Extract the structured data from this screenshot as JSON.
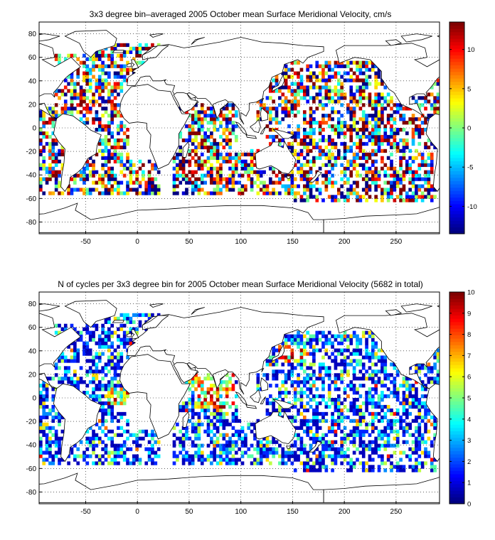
{
  "chart_data": [
    {
      "type": "heatmap",
      "title": "3x3 degree bin–averaged 2005 October mean Surface Meridional Velocity, cm/s",
      "xlim": [
        -95,
        292
      ],
      "ylim": [
        -90,
        90
      ],
      "xticks": [
        -50,
        0,
        50,
        100,
        150,
        200,
        250
      ],
      "yticks": [
        -80,
        -60,
        -40,
        -20,
        0,
        20,
        40,
        60,
        80
      ],
      "grid": true,
      "bin_size_deg": 3,
      "colormap": "jet",
      "colorbar": {
        "range": [
          -13.5,
          13.5
        ],
        "ticks": [
          -10,
          -5,
          0,
          5,
          10
        ],
        "placement": "right"
      },
      "value_distribution": "noisy, values span full range in nearly every ocean bin",
      "coverage_regions": [
        {
          "lon": [
            -95,
            -68
          ],
          "lat": [
            -58,
            18
          ]
        },
        {
          "lon": [
            -80,
            -8
          ],
          "lat": [
            -58,
            62
          ]
        },
        {
          "lon": [
            -45,
            22
          ],
          "lat": [
            45,
            72
          ]
        },
        {
          "lon": [
            -8,
            22
          ],
          "lat": [
            -58,
            -28
          ]
        },
        {
          "lon": [
            35,
            98
          ],
          "lat": [
            -58,
            22
          ]
        },
        {
          "lon": [
            95,
            140
          ],
          "lat": [
            -58,
            -18
          ]
        },
        {
          "lon": [
            115,
            132
          ],
          "lat": [
            5,
            35
          ]
        },
        {
          "lon": [
            125,
            250
          ],
          "lat": [
            -58,
            58
          ]
        },
        {
          "lon": [
            150,
            290
          ],
          "lat": [
            -62,
            5
          ]
        },
        {
          "lon": [
            228,
            292
          ],
          "lat": [
            5,
            30
          ]
        },
        {
          "lon": [
            272,
            292
          ],
          "lat": [
            25,
            48
          ]
        }
      ]
    },
    {
      "type": "heatmap",
      "title": "N of cycles per 3x3 degree bin for 2005 October mean Surface Meridional Velocity (5682 in total)",
      "xlim": [
        -95,
        292
      ],
      "ylim": [
        -90,
        90
      ],
      "xticks": [
        -50,
        0,
        50,
        100,
        150,
        200,
        250
      ],
      "yticks": [
        -80,
        -60,
        -40,
        -20,
        0,
        20,
        40,
        60,
        80
      ],
      "grid": true,
      "bin_size_deg": 3,
      "colormap": "jet",
      "total_cycles": 5682,
      "colorbar": {
        "range": [
          0,
          10
        ],
        "ticks": [
          0,
          1,
          2,
          3,
          4,
          5,
          6,
          7,
          8,
          9,
          10
        ],
        "placement": "right"
      },
      "value_distribution": "mostly 1-4 cycles per bin, higher counts (6-10) in the Arabian Sea, Bay of Bengal, western Pacific off Japan and equatorial Atlantic",
      "coverage_regions": [
        {
          "lon": [
            -95,
            -68
          ],
          "lat": [
            -58,
            18
          ]
        },
        {
          "lon": [
            -80,
            -8
          ],
          "lat": [
            -58,
            62
          ]
        },
        {
          "lon": [
            -45,
            22
          ],
          "lat": [
            45,
            72
          ]
        },
        {
          "lon": [
            -8,
            22
          ],
          "lat": [
            -58,
            -28
          ]
        },
        {
          "lon": [
            35,
            98
          ],
          "lat": [
            -58,
            22
          ]
        },
        {
          "lon": [
            95,
            140
          ],
          "lat": [
            -58,
            -18
          ]
        },
        {
          "lon": [
            115,
            132
          ],
          "lat": [
            5,
            35
          ]
        },
        {
          "lon": [
            125,
            250
          ],
          "lat": [
            -58,
            58
          ]
        },
        {
          "lon": [
            150,
            290
          ],
          "lat": [
            -62,
            5
          ]
        },
        {
          "lon": [
            228,
            292
          ],
          "lat": [
            5,
            30
          ]
        },
        {
          "lon": [
            272,
            292
          ],
          "lat": [
            25,
            48
          ]
        }
      ]
    }
  ]
}
